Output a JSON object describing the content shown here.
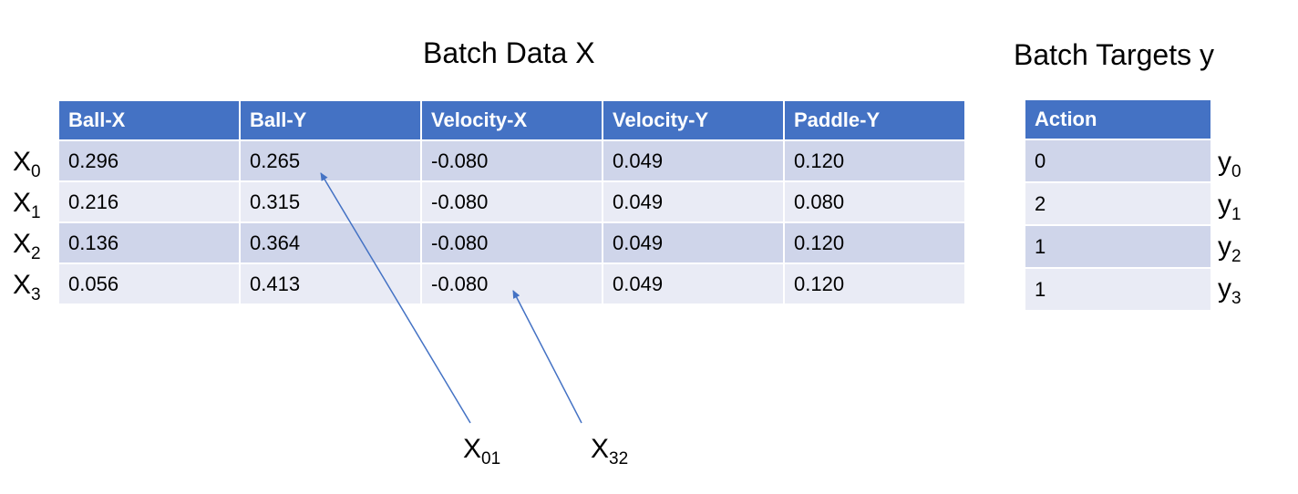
{
  "titles": {
    "data": "Batch Data X",
    "targets": "Batch Targets y"
  },
  "data_table": {
    "headers": [
      "Ball-X",
      "Ball-Y",
      "Velocity-X",
      "Velocity-Y",
      "Paddle-Y"
    ],
    "rows": [
      [
        "0.296",
        "0.265",
        "-0.080",
        "0.049",
        "0.120"
      ],
      [
        "0.216",
        "0.315",
        "-0.080",
        "0.049",
        "0.080"
      ],
      [
        "0.136",
        "0.364",
        "-0.080",
        "0.049",
        "0.120"
      ],
      [
        "0.056",
        "0.413",
        "-0.080",
        "0.049",
        "0.120"
      ]
    ]
  },
  "target_table": {
    "header": "Action",
    "rows": [
      "0",
      "2",
      "1",
      "1"
    ]
  },
  "row_labels": [
    {
      "base": "X",
      "sub": "0"
    },
    {
      "base": "X",
      "sub": "1"
    },
    {
      "base": "X",
      "sub": "2"
    },
    {
      "base": "X",
      "sub": "3"
    }
  ],
  "target_labels": [
    {
      "base": "y",
      "sub": "0"
    },
    {
      "base": "y",
      "sub": "1"
    },
    {
      "base": "y",
      "sub": "2"
    },
    {
      "base": "y",
      "sub": "3"
    }
  ],
  "callouts": [
    {
      "base": "X",
      "sub": "01"
    },
    {
      "base": "X",
      "sub": "32"
    }
  ],
  "colors": {
    "header": "#4472C4",
    "row_band_dark": "#CFD5EA",
    "row_band_light": "#E9EBF5",
    "arrow": "#4472C4"
  }
}
